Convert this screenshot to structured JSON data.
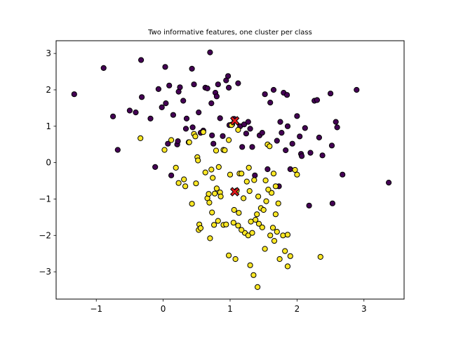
{
  "chart_data": {
    "type": "scatter",
    "title": "Two informative features, one cluster per class",
    "xlabel": "",
    "ylabel": "",
    "xlim": [
      -1.6,
      3.6
    ],
    "ylim": [
      -3.75,
      3.35
    ],
    "x_ticks": [
      -1,
      0,
      1,
      2,
      3
    ],
    "y_ticks": [
      -3,
      -2,
      -1,
      0,
      1,
      2,
      3
    ],
    "x_tick_labels": [
      "−1",
      "0",
      "1",
      "2",
      "3"
    ],
    "y_tick_labels": [
      "−3",
      "−2",
      "−1",
      "0",
      "1",
      "2",
      "3"
    ],
    "grid": false,
    "legend": "none",
    "colors": {
      "class_0": "#440154",
      "class_1": "#fde725",
      "centroid": "#e31a1c",
      "edge": "#000000"
    },
    "series": [
      {
        "class": 0,
        "points": [
          [
            -1.33,
            1.88
          ],
          [
            -0.89,
            2.6
          ],
          [
            -0.75,
            1.27
          ],
          [
            -0.68,
            0.35
          ],
          [
            -0.5,
            1.43
          ],
          [
            -0.41,
            1.38
          ],
          [
            -0.33,
            2.82
          ],
          [
            -0.32,
            1.8
          ],
          [
            -0.19,
            1.21
          ],
          [
            -0.12,
            -0.12
          ],
          [
            -0.07,
            2.02
          ],
          [
            -0.02,
            1.52
          ],
          [
            0.03,
            2.63
          ],
          [
            0.04,
            1.63
          ],
          [
            0.07,
            0.52
          ],
          [
            0.09,
            2.12
          ],
          [
            0.12,
            -0.35
          ],
          [
            0.15,
            1.31
          ],
          [
            0.21,
            0.5
          ],
          [
            0.22,
            0.59
          ],
          [
            0.23,
            1.95
          ],
          [
            0.25,
            2.07
          ],
          [
            0.3,
            1.7
          ],
          [
            0.34,
            0.93
          ],
          [
            0.35,
            1.21
          ],
          [
            0.38,
            0.56
          ],
          [
            0.43,
            2.58
          ],
          [
            0.44,
            0.97
          ],
          [
            0.46,
            2.15
          ],
          [
            0.53,
            1.38
          ],
          [
            0.56,
            0.82
          ],
          [
            0.6,
            0.88
          ],
          [
            0.63,
            2.06
          ],
          [
            0.66,
            2.04
          ],
          [
            0.7,
            3.03
          ],
          [
            0.72,
            1.63
          ],
          [
            0.73,
            0.75
          ],
          [
            0.75,
            0.52
          ],
          [
            0.78,
            1.92
          ],
          [
            0.8,
            1.82
          ],
          [
            0.82,
            2.15
          ],
          [
            0.85,
            1.22
          ],
          [
            0.89,
            0.73
          ],
          [
            0.94,
            2.26
          ],
          [
            0.97,
            2.38
          ],
          [
            0.98,
            2.06
          ],
          [
            0.99,
            1.03
          ],
          [
            1.03,
            1.05
          ],
          [
            1.06,
            1.2
          ],
          [
            1.12,
            2.18
          ],
          [
            1.15,
            1.0
          ],
          [
            1.18,
            0.43
          ],
          [
            1.21,
            1.05
          ],
          [
            1.24,
            0.8
          ],
          [
            1.27,
            1.12
          ],
          [
            1.3,
            0.93
          ],
          [
            1.33,
            0.43
          ],
          [
            1.37,
            -0.35
          ],
          [
            1.44,
            0.75
          ],
          [
            1.48,
            0.82
          ],
          [
            1.52,
            1.88
          ],
          [
            1.56,
            -0.18
          ],
          [
            1.6,
            1.65
          ],
          [
            1.65,
            2.0
          ],
          [
            1.7,
            0.6
          ],
          [
            1.73,
            -0.65
          ],
          [
            1.75,
            1.12
          ],
          [
            1.77,
            0.82
          ],
          [
            1.8,
            1.92
          ],
          [
            1.83,
            0.34
          ],
          [
            1.85,
            1.86
          ],
          [
            1.86,
            1.0
          ],
          [
            1.9,
            -0.18
          ],
          [
            1.93,
            0.52
          ],
          [
            2.0,
            1.28
          ],
          [
            2.04,
            0.72
          ],
          [
            2.06,
            0.24
          ],
          [
            2.07,
            0.18
          ],
          [
            2.12,
            0.95
          ],
          [
            2.18,
            -1.18
          ],
          [
            2.2,
            0.27
          ],
          [
            2.26,
            1.7
          ],
          [
            2.3,
            1.72
          ],
          [
            2.33,
            0.69
          ],
          [
            2.38,
            0.2
          ],
          [
            2.5,
            1.9
          ],
          [
            2.52,
            0.47
          ],
          [
            2.53,
            -1.12
          ],
          [
            2.58,
            1.12
          ],
          [
            2.6,
            0.97
          ],
          [
            2.68,
            -0.33
          ],
          [
            2.89,
            2.0
          ],
          [
            3.37,
            -0.55
          ]
        ]
      },
      {
        "class": 1,
        "points": [
          [
            -0.34,
            0.67
          ],
          [
            0.02,
            0.35
          ],
          [
            0.12,
            0.62
          ],
          [
            0.19,
            -0.14
          ],
          [
            0.23,
            -0.56
          ],
          [
            0.31,
            -0.46
          ],
          [
            0.33,
            -0.65
          ],
          [
            0.39,
            0.56
          ],
          [
            0.43,
            -1.13
          ],
          [
            0.46,
            0.79
          ],
          [
            0.48,
            0.72
          ],
          [
            0.49,
            -0.57
          ],
          [
            0.51,
            0.15
          ],
          [
            0.52,
            0.06
          ],
          [
            0.53,
            -1.85
          ],
          [
            0.54,
            -1.7
          ],
          [
            0.56,
            -1.8
          ],
          [
            0.6,
            0.84
          ],
          [
            0.63,
            -0.27
          ],
          [
            0.66,
            -0.98
          ],
          [
            0.68,
            -0.86
          ],
          [
            0.69,
            -1.1
          ],
          [
            0.7,
            -2.08
          ],
          [
            0.72,
            -0.19
          ],
          [
            0.73,
            -1.37
          ],
          [
            0.74,
            -0.42
          ],
          [
            0.76,
            -1.71
          ],
          [
            0.77,
            -0.85
          ],
          [
            0.79,
            0.33
          ],
          [
            0.8,
            -0.71
          ],
          [
            0.82,
            -1.6
          ],
          [
            0.83,
            -0.12
          ],
          [
            0.85,
            -0.82
          ],
          [
            0.86,
            -0.93
          ],
          [
            0.9,
            -1.71
          ],
          [
            0.9,
            0.35
          ],
          [
            0.92,
            0.34
          ],
          [
            0.98,
            -2.55
          ],
          [
            1.0,
            -0.33
          ],
          [
            1.02,
            1.03
          ],
          [
            1.05,
            -1.65
          ],
          [
            1.06,
            -1.3
          ],
          [
            1.08,
            -2.65
          ],
          [
            1.1,
            -0.77
          ],
          [
            1.12,
            0.9
          ],
          [
            1.13,
            -1.38
          ],
          [
            1.14,
            -0.3
          ],
          [
            1.17,
            -0.3
          ],
          [
            1.2,
            -0.98
          ],
          [
            1.22,
            -1.93
          ],
          [
            1.25,
            -0.52
          ],
          [
            1.27,
            -2.0
          ],
          [
            1.28,
            -0.14
          ],
          [
            1.29,
            -0.78
          ],
          [
            1.3,
            -2.82
          ],
          [
            1.31,
            -1.62
          ],
          [
            1.33,
            -1.93
          ],
          [
            1.35,
            -3.09
          ],
          [
            1.36,
            -0.48
          ],
          [
            1.38,
            -1.57
          ],
          [
            1.4,
            -1.42
          ],
          [
            1.42,
            -0.93
          ],
          [
            1.43,
            -1.68
          ],
          [
            1.46,
            -1.25
          ],
          [
            1.48,
            -1.78
          ],
          [
            1.5,
            -1.3
          ],
          [
            1.52,
            -2.37
          ],
          [
            1.54,
            -1.06
          ],
          [
            1.56,
            0.5
          ],
          [
            1.59,
            0.45
          ],
          [
            1.6,
            -2.0
          ],
          [
            1.62,
            -0.83
          ],
          [
            1.64,
            -1.79
          ],
          [
            1.66,
            -2.15
          ],
          [
            1.68,
            -1.42
          ],
          [
            1.7,
            -1.9
          ],
          [
            1.72,
            -1.12
          ],
          [
            1.74,
            -2.65
          ],
          [
            1.79,
            -2.0
          ],
          [
            1.82,
            -2.43
          ],
          [
            1.86,
            -2.85
          ],
          [
            1.9,
            -2.57
          ],
          [
            1.97,
            -0.2
          ],
          [
            2.0,
            -0.33
          ],
          [
            2.35,
            -2.59
          ],
          [
            0.94,
            -1.7
          ],
          [
            1.12,
            -1.73
          ],
          [
            1.17,
            -1.85
          ],
          [
            1.41,
            -3.42
          ],
          [
            1.53,
            -0.49
          ],
          [
            1.57,
            -0.74
          ],
          [
            1.65,
            -0.3
          ],
          [
            1.68,
            -0.65
          ],
          [
            1.86,
            -1.98
          ],
          [
            0.98,
            0.62
          ]
        ]
      }
    ],
    "centroids": [
      [
        1.07,
        1.15
      ],
      [
        1.07,
        -0.8
      ]
    ]
  }
}
